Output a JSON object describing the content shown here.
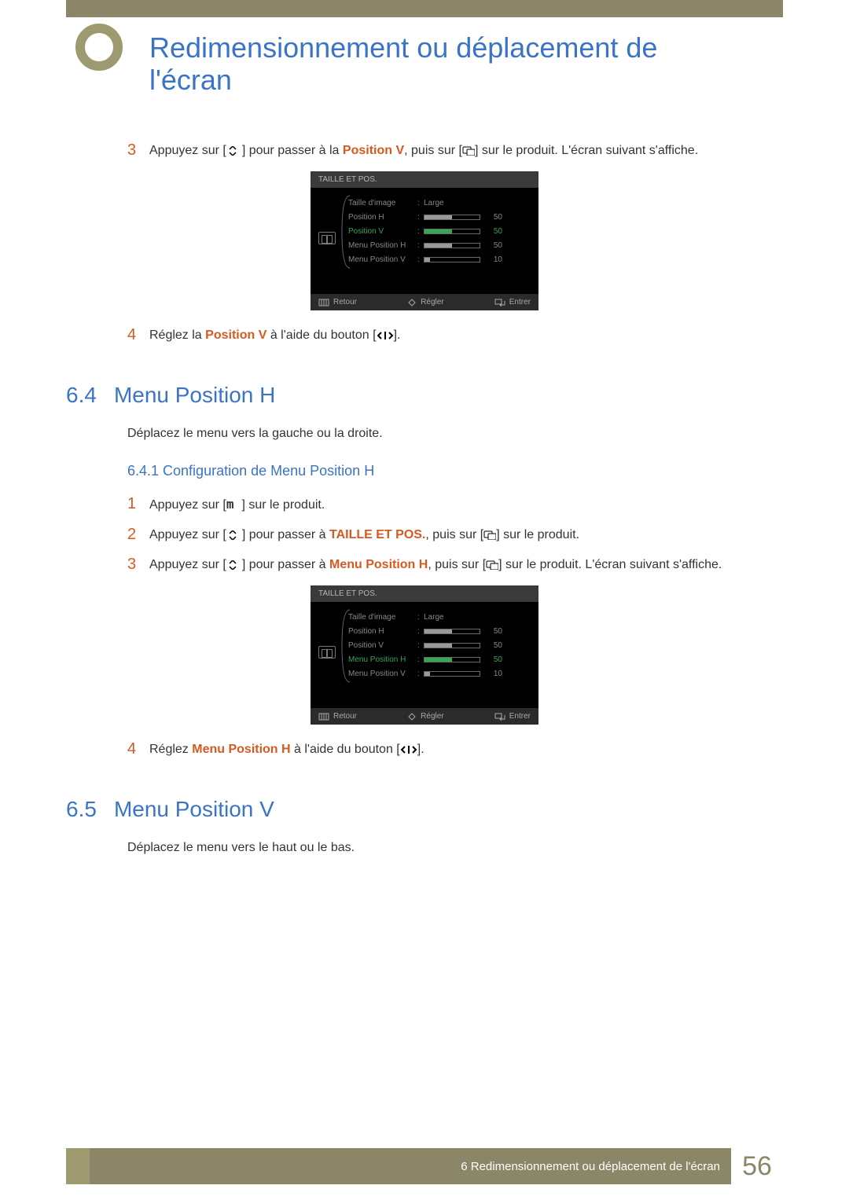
{
  "page": {
    "title": "Redimensionnement ou déplacement de l'écran",
    "footer_chapter": "6 Redimensionnement ou déplacement de l'écran",
    "page_number": "56"
  },
  "colors": {
    "accent_blue": "#3b74c5",
    "accent_orange": "#d45a1f",
    "banner_olive": "#8b8667",
    "banner_olive_light": "#9c9a6e",
    "osd_green": "#34a853",
    "osd_bg": "#000000",
    "osd_title_bg": "#3a3a3a",
    "osd_footer_bg": "#2b2b2b",
    "osd_grey_text": "#888888"
  },
  "step3": {
    "num": "3",
    "pre": "Appuyez sur [",
    "mid1": "] pour passer à la ",
    "kw1": "Position V",
    "mid2": ", puis sur [",
    "mid3": "] sur le produit. L'écran suivant s'affiche."
  },
  "step4a": {
    "num": "4",
    "pre": "Réglez la ",
    "kw": "Position V",
    "mid": " à l'aide du bouton [",
    "post": "]."
  },
  "heading64": {
    "num": "6.4",
    "title": "Menu Position H"
  },
  "intro64": "Déplacez le menu vers la gauche ou la droite.",
  "sub641": "6.4.1   Configuration de Menu Position H",
  "s641_1": {
    "num": "1",
    "pre": "Appuyez sur [",
    "key": "m",
    "post": "] sur le produit."
  },
  "s641_2": {
    "num": "2",
    "pre": "Appuyez sur [",
    "mid1": "] pour passer à ",
    "kw": "TAILLE ET POS.",
    "mid2": ", puis sur [",
    "post": "] sur le produit."
  },
  "s641_3": {
    "num": "3",
    "pre": "Appuyez sur [",
    "mid1": "] pour passer à ",
    "kw": "Menu Position H",
    "mid2": ", puis sur [",
    "post": "] sur le produit. L'écran suivant s'affiche."
  },
  "step4b": {
    "num": "4",
    "pre": "Réglez ",
    "kw": "Menu Position H",
    "mid": " à l'aide du bouton [",
    "post": "]."
  },
  "heading65": {
    "num": "6.5",
    "title": "Menu Position V"
  },
  "intro65": "Déplacez le menu vers le haut ou le bas.",
  "osd1": {
    "title": "TAILLE ET POS.",
    "active_index": 2,
    "rows": [
      {
        "label": "Taille d'image",
        "type": "text",
        "value": "Large"
      },
      {
        "label": "Position H",
        "type": "bar",
        "value": 50,
        "max": 100
      },
      {
        "label": "Position V",
        "type": "bar",
        "value": 50,
        "max": 100
      },
      {
        "label": "Menu Position H",
        "type": "bar",
        "value": 50,
        "max": 100
      },
      {
        "label": "Menu Position V",
        "type": "bar",
        "value": 10,
        "max": 100
      }
    ],
    "footer": {
      "retour": "Retour",
      "regler": "Régler",
      "entrer": "Entrer"
    }
  },
  "osd2": {
    "title": "TAILLE ET POS.",
    "active_index": 3,
    "rows": [
      {
        "label": "Taille d'image",
        "type": "text",
        "value": "Large"
      },
      {
        "label": "Position H",
        "type": "bar",
        "value": 50,
        "max": 100
      },
      {
        "label": "Position V",
        "type": "bar",
        "value": 50,
        "max": 100
      },
      {
        "label": "Menu Position H",
        "type": "bar",
        "value": 50,
        "max": 100
      },
      {
        "label": "Menu Position V",
        "type": "bar",
        "value": 10,
        "max": 100
      }
    ],
    "footer": {
      "retour": "Retour",
      "regler": "Régler",
      "entrer": "Entrer"
    }
  }
}
